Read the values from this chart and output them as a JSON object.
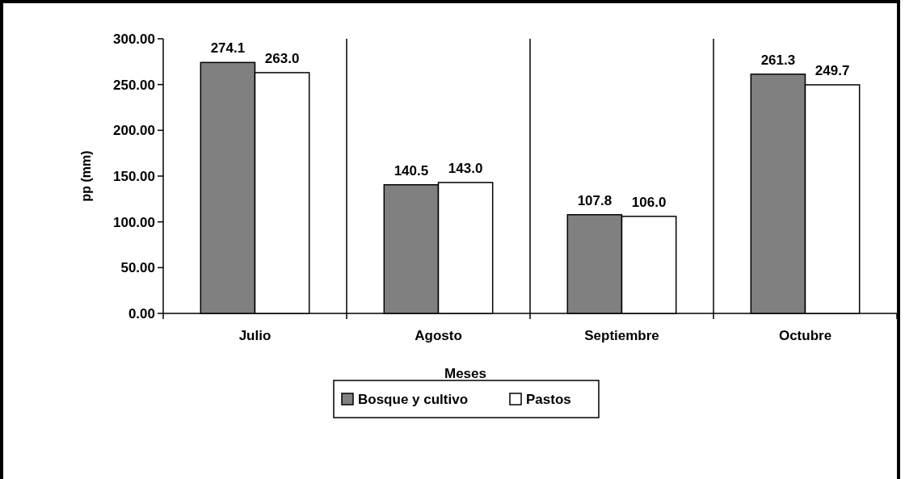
{
  "chart_data": {
    "type": "bar",
    "xlabel": "Meses",
    "ylabel": "pp (mm)",
    "categories": [
      "Julio",
      "Agosto",
      "Septiembre",
      "Octubre"
    ],
    "series": [
      {
        "name": "Bosque y cultivo",
        "color": "#808080",
        "values": [
          274.1,
          140.5,
          107.8,
          261.3
        ],
        "value_labels": [
          "274.1",
          "140.5",
          "107.8",
          "261.3"
        ]
      },
      {
        "name": "Pastos",
        "color": "#ffffff",
        "values": [
          263.0,
          143.0,
          106.0,
          249.7
        ],
        "value_labels": [
          "263.0",
          "143.0",
          "106.0",
          "249.7"
        ]
      }
    ],
    "ylim": [
      0,
      300
    ],
    "yticks": [
      {
        "value": 0,
        "label": "0.00"
      },
      {
        "value": 50,
        "label": "50.00"
      },
      {
        "value": 100,
        "label": "100.00"
      },
      {
        "value": 150,
        "label": "150.00"
      },
      {
        "value": 200,
        "label": "200.00"
      },
      {
        "value": 250,
        "label": "250.00"
      },
      {
        "value": 300,
        "label": "300.00"
      }
    ],
    "grid": "x",
    "legend": "bottom"
  }
}
